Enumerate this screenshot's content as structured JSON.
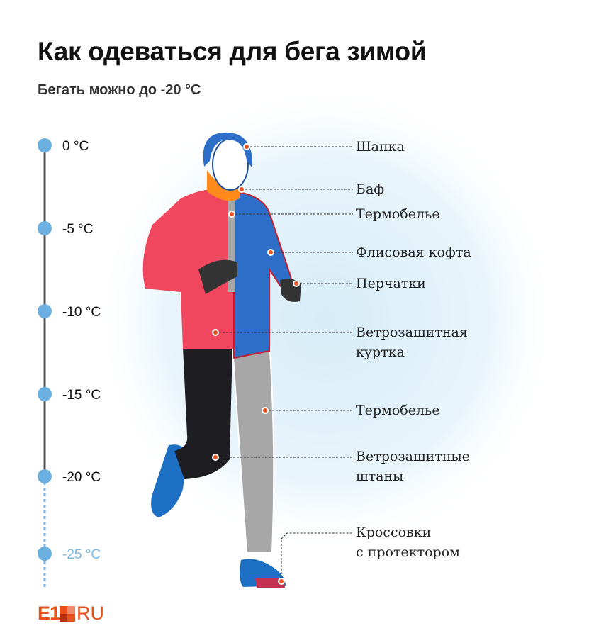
{
  "title": "Как одеваться для бега зимой",
  "subtitle": "Бегать можно до -20 °C",
  "scale": {
    "items": [
      {
        "label": "0 °C",
        "allowed": true
      },
      {
        "label": "-5 °C",
        "allowed": true
      },
      {
        "label": "-10 °C",
        "allowed": true
      },
      {
        "label": "-15 °C",
        "allowed": true
      },
      {
        "label": "-20 °C",
        "allowed": true
      },
      {
        "label": "-25 °C",
        "allowed": false
      }
    ],
    "colors": {
      "solid_line": "#555555",
      "dot": "#6cb0e2",
      "cold_text": "#7fb6e0"
    }
  },
  "labels": [
    {
      "line1": "Шапка"
    },
    {
      "line1": "Баф"
    },
    {
      "line1": "Термобелье"
    },
    {
      "line1": "Флисовая кофта"
    },
    {
      "line1": "Перчатки"
    },
    {
      "line1": "Ветрозащитная",
      "line2": "куртка"
    },
    {
      "line1": "Термобелье"
    },
    {
      "line1": "Ветрозащитные",
      "line2": "штаны"
    },
    {
      "line1": "Кроссовки",
      "line2": "с протектором"
    }
  ],
  "logo": {
    "text": "E1",
    "suffix": "RU",
    "color": "#e8501e"
  }
}
